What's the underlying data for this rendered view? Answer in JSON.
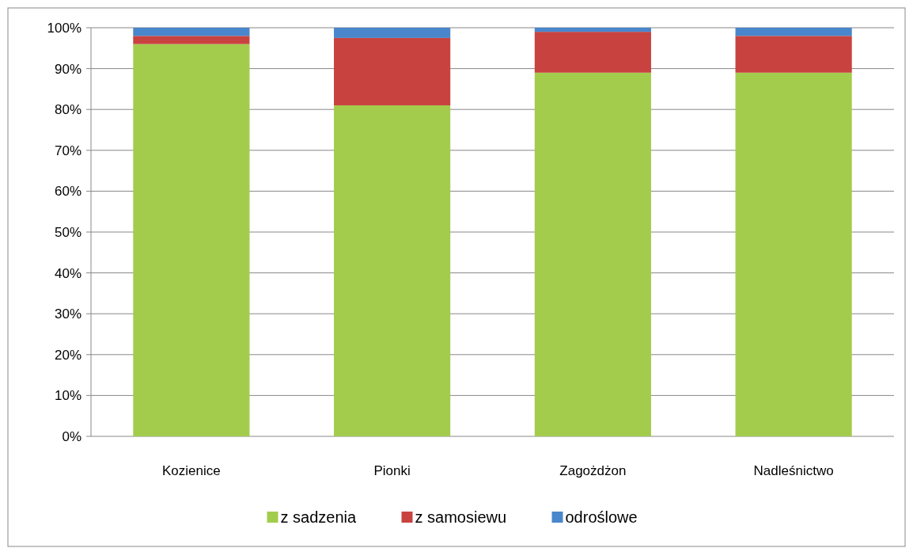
{
  "chart_data": {
    "type": "bar",
    "stacked": true,
    "categories": [
      "Kozienice",
      "Pionki",
      "Zagożdżon",
      "Nadleśnictwo"
    ],
    "series": [
      {
        "name": "z sadzenia",
        "color": "#a3cc4c",
        "values": [
          96,
          81,
          89,
          89
        ]
      },
      {
        "name": "z samosiewu",
        "color": "#c84340",
        "values": [
          2,
          16.5,
          10,
          9
        ]
      },
      {
        "name": "odroślowe",
        "color": "#4a86cc",
        "values": [
          2,
          2.5,
          1,
          2
        ]
      }
    ],
    "ylim": [
      0,
      100
    ],
    "yticks": [
      {
        "value": 0,
        "label": "0%"
      },
      {
        "value": 10,
        "label": "10%"
      },
      {
        "value": 20,
        "label": "20%"
      },
      {
        "value": 30,
        "label": "30%"
      },
      {
        "value": 40,
        "label": "40%"
      },
      {
        "value": 50,
        "label": "50%"
      },
      {
        "value": 60,
        "label": "60%"
      },
      {
        "value": 70,
        "label": "70%"
      },
      {
        "value": 80,
        "label": "80%"
      },
      {
        "value": 90,
        "label": "90%"
      },
      {
        "value": 100,
        "label": "100%"
      }
    ],
    "grid": "y",
    "legend": "bottom"
  }
}
